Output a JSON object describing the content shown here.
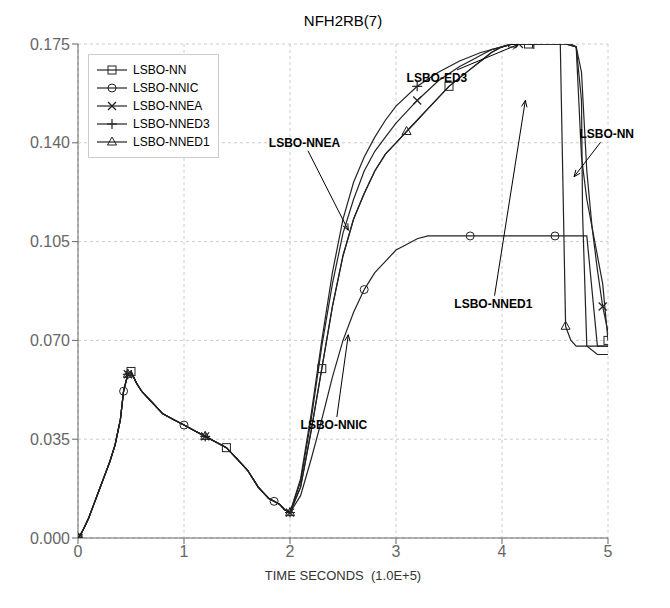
{
  "chart_data": {
    "type": "line",
    "title": "NFH2RB(7)",
    "xlabel": "TIME SECONDS  (1.0E+5)",
    "xlim": [
      0,
      5
    ],
    "ylim": [
      0,
      0.175
    ],
    "xticks": [
      0,
      1,
      2,
      3,
      4,
      5
    ],
    "yticks": [
      {
        "value": 0.0,
        "label": "0.000"
      },
      {
        "value": 0.035,
        "label": "0.035"
      },
      {
        "value": 0.07,
        "label": "0.070"
      },
      {
        "value": 0.105,
        "label": "0.105"
      },
      {
        "value": 0.14,
        "label": "0.140"
      },
      {
        "value": 0.175,
        "label": "0.175"
      }
    ],
    "grid": true,
    "legend": "upper left",
    "series": [
      {
        "name": "LSBO-NN",
        "color": "#222222",
        "marker": "square",
        "x": [
          0.0,
          0.02,
          0.05,
          0.1,
          0.15,
          0.2,
          0.25,
          0.3,
          0.35,
          0.4,
          0.43,
          0.47,
          0.5,
          0.55,
          0.6,
          0.65,
          0.7,
          0.75,
          0.8,
          0.9,
          1.0,
          1.1,
          1.2,
          1.3,
          1.4,
          1.5,
          1.6,
          1.7,
          1.75,
          1.8,
          1.85,
          1.9,
          1.95,
          2.0,
          2.1,
          2.2,
          2.3,
          2.4,
          2.5,
          2.6,
          2.7,
          2.8,
          2.9,
          3.0,
          3.1,
          3.2,
          3.3,
          3.4,
          3.5,
          3.6,
          3.7,
          3.8,
          3.9,
          4.0,
          4.05,
          4.1,
          4.15,
          4.19,
          4.2,
          4.21,
          4.25,
          4.3,
          4.4,
          4.5,
          4.6,
          4.65,
          4.7,
          4.75,
          4.8,
          4.85,
          4.9,
          4.95,
          5.0
        ],
        "values": [
          0.0,
          0.001,
          0.003,
          0.007,
          0.012,
          0.017,
          0.022,
          0.027,
          0.033,
          0.042,
          0.052,
          0.058,
          0.059,
          0.055,
          0.052,
          0.05,
          0.048,
          0.046,
          0.044,
          0.042,
          0.04,
          0.038,
          0.036,
          0.034,
          0.032,
          0.028,
          0.024,
          0.018,
          0.016,
          0.014,
          0.013,
          0.012,
          0.01,
          0.009,
          0.018,
          0.038,
          0.06,
          0.082,
          0.1,
          0.113,
          0.122,
          0.13,
          0.136,
          0.14,
          0.144,
          0.148,
          0.152,
          0.156,
          0.16,
          0.163,
          0.166,
          0.169,
          0.172,
          0.174,
          0.1745,
          0.175,
          0.175,
          0.175,
          0.175,
          0.175,
          0.175,
          0.175,
          0.175,
          0.175,
          0.175,
          0.175,
          0.174,
          0.135,
          0.12,
          0.11,
          0.1,
          0.09,
          0.07
        ]
      },
      {
        "name": "LSBO-NNIC",
        "color": "#222222",
        "marker": "circle",
        "x": [
          0.0,
          0.02,
          0.05,
          0.1,
          0.15,
          0.2,
          0.25,
          0.3,
          0.35,
          0.4,
          0.43,
          0.47,
          0.5,
          0.55,
          0.6,
          0.65,
          0.7,
          0.75,
          0.8,
          0.9,
          1.0,
          1.1,
          1.2,
          1.3,
          1.4,
          1.5,
          1.6,
          1.7,
          1.75,
          1.8,
          1.85,
          1.9,
          1.95,
          2.0,
          2.1,
          2.2,
          2.3,
          2.4,
          2.5,
          2.6,
          2.7,
          2.8,
          2.9,
          3.0,
          3.1,
          3.2,
          3.3,
          3.4,
          3.5,
          3.6,
          3.7,
          3.8,
          3.9,
          4.0,
          4.1,
          4.2,
          4.3,
          4.4,
          4.45,
          4.46,
          4.5,
          4.55,
          4.6,
          4.7,
          4.8,
          4.9,
          5.0
        ],
        "values": [
          0.0,
          0.001,
          0.003,
          0.007,
          0.012,
          0.017,
          0.022,
          0.027,
          0.033,
          0.042,
          0.052,
          0.058,
          0.059,
          0.055,
          0.052,
          0.05,
          0.048,
          0.046,
          0.044,
          0.042,
          0.04,
          0.038,
          0.036,
          0.034,
          0.032,
          0.028,
          0.024,
          0.018,
          0.016,
          0.014,
          0.013,
          0.012,
          0.01,
          0.009,
          0.015,
          0.028,
          0.042,
          0.057,
          0.07,
          0.08,
          0.088,
          0.094,
          0.098,
          0.102,
          0.104,
          0.106,
          0.107,
          0.107,
          0.107,
          0.107,
          0.107,
          0.107,
          0.107,
          0.107,
          0.107,
          0.107,
          0.107,
          0.107,
          0.107,
          0.107,
          0.107,
          0.107,
          0.107,
          0.107,
          0.107,
          0.068,
          0.068
        ]
      },
      {
        "name": "LSBO-NNEA",
        "color": "#222222",
        "marker": "x",
        "x": [
          0.0,
          0.02,
          0.05,
          0.1,
          0.15,
          0.2,
          0.25,
          0.3,
          0.35,
          0.4,
          0.43,
          0.47,
          0.5,
          0.55,
          0.6,
          0.65,
          0.7,
          0.75,
          0.8,
          0.9,
          1.0,
          1.1,
          1.2,
          1.3,
          1.4,
          1.5,
          1.6,
          1.7,
          1.75,
          1.8,
          1.85,
          1.9,
          1.95,
          2.0,
          2.1,
          2.2,
          2.3,
          2.4,
          2.5,
          2.6,
          2.7,
          2.8,
          2.9,
          3.0,
          3.2,
          3.4,
          3.6,
          3.7,
          3.8,
          3.9,
          4.0,
          4.05,
          4.1,
          4.14,
          4.15,
          4.16,
          4.2,
          4.3,
          4.4,
          4.5,
          4.6,
          4.7,
          4.75,
          4.8,
          4.85,
          4.9,
          4.95,
          5.0
        ],
        "values": [
          0.0,
          0.001,
          0.003,
          0.007,
          0.012,
          0.017,
          0.022,
          0.027,
          0.033,
          0.042,
          0.052,
          0.058,
          0.059,
          0.055,
          0.052,
          0.05,
          0.048,
          0.046,
          0.044,
          0.042,
          0.04,
          0.038,
          0.036,
          0.034,
          0.032,
          0.028,
          0.024,
          0.018,
          0.016,
          0.014,
          0.013,
          0.012,
          0.01,
          0.009,
          0.02,
          0.042,
          0.068,
          0.09,
          0.108,
          0.12,
          0.13,
          0.137,
          0.142,
          0.147,
          0.155,
          0.162,
          0.167,
          0.169,
          0.171,
          0.173,
          0.174,
          0.1745,
          0.175,
          0.175,
          0.175,
          0.175,
          0.175,
          0.175,
          0.175,
          0.175,
          0.175,
          0.174,
          0.165,
          0.13,
          0.11,
          0.095,
          0.082,
          0.073
        ]
      },
      {
        "name": "LSBO-NNED3",
        "color": "#222222",
        "marker": "plus",
        "x": [
          0.0,
          0.02,
          0.05,
          0.1,
          0.15,
          0.2,
          0.25,
          0.3,
          0.35,
          0.4,
          0.43,
          0.47,
          0.5,
          0.55,
          0.6,
          0.65,
          0.7,
          0.75,
          0.8,
          0.9,
          1.0,
          1.1,
          1.2,
          1.3,
          1.4,
          1.5,
          1.6,
          1.7,
          1.75,
          1.8,
          1.85,
          1.9,
          1.95,
          2.0,
          2.1,
          2.2,
          2.3,
          2.4,
          2.5,
          2.6,
          2.7,
          2.8,
          2.9,
          3.0,
          3.2,
          3.4,
          3.6,
          3.8,
          4.0,
          4.05,
          4.1,
          4.14,
          4.15,
          4.16,
          4.2,
          4.3,
          4.4,
          4.5,
          4.6,
          4.7,
          4.75,
          4.76,
          4.8,
          4.9,
          5.0
        ],
        "values": [
          0.0,
          0.001,
          0.003,
          0.007,
          0.012,
          0.017,
          0.022,
          0.027,
          0.033,
          0.042,
          0.052,
          0.058,
          0.059,
          0.055,
          0.052,
          0.05,
          0.048,
          0.046,
          0.044,
          0.042,
          0.04,
          0.038,
          0.036,
          0.034,
          0.032,
          0.028,
          0.024,
          0.018,
          0.016,
          0.014,
          0.013,
          0.012,
          0.01,
          0.009,
          0.021,
          0.044,
          0.07,
          0.094,
          0.113,
          0.126,
          0.135,
          0.142,
          0.148,
          0.153,
          0.16,
          0.165,
          0.169,
          0.172,
          0.174,
          0.1745,
          0.175,
          0.175,
          0.175,
          0.175,
          0.175,
          0.175,
          0.175,
          0.175,
          0.175,
          0.174,
          0.155,
          0.115,
          0.068,
          0.065,
          0.065
        ]
      },
      {
        "name": "LSBO-NNED1",
        "color": "#222222",
        "marker": "triangle",
        "x": [
          0.0,
          0.02,
          0.05,
          0.1,
          0.15,
          0.2,
          0.25,
          0.3,
          0.35,
          0.4,
          0.43,
          0.47,
          0.5,
          0.55,
          0.6,
          0.65,
          0.7,
          0.75,
          0.8,
          0.9,
          1.0,
          1.1,
          1.2,
          1.3,
          1.4,
          1.5,
          1.6,
          1.7,
          1.75,
          1.8,
          1.85,
          1.9,
          1.95,
          2.0,
          2.1,
          2.2,
          2.3,
          2.4,
          2.5,
          2.6,
          2.7,
          2.8,
          2.9,
          3.0,
          3.1,
          3.2,
          3.3,
          3.4,
          3.5,
          3.6,
          3.7,
          3.8,
          3.9,
          4.0,
          4.05,
          4.1,
          4.15,
          4.19,
          4.2,
          4.21,
          4.25,
          4.3,
          4.4,
          4.5,
          4.55,
          4.56,
          4.6,
          4.65,
          4.7,
          4.8,
          4.9,
          5.0
        ],
        "values": [
          0.0,
          0.001,
          0.003,
          0.007,
          0.012,
          0.017,
          0.022,
          0.027,
          0.033,
          0.042,
          0.052,
          0.058,
          0.059,
          0.055,
          0.052,
          0.05,
          0.048,
          0.046,
          0.044,
          0.042,
          0.04,
          0.038,
          0.036,
          0.034,
          0.032,
          0.028,
          0.024,
          0.018,
          0.016,
          0.014,
          0.013,
          0.012,
          0.01,
          0.009,
          0.018,
          0.038,
          0.06,
          0.082,
          0.1,
          0.113,
          0.122,
          0.13,
          0.136,
          0.14,
          0.144,
          0.148,
          0.152,
          0.156,
          0.16,
          0.163,
          0.166,
          0.169,
          0.172,
          0.174,
          0.1745,
          0.175,
          0.175,
          0.175,
          0.175,
          0.175,
          0.175,
          0.175,
          0.175,
          0.175,
          0.175,
          0.155,
          0.075,
          0.07,
          0.068,
          0.068,
          0.068,
          0.068
        ]
      }
    ],
    "annotations": [
      {
        "text": "LSBO-ED3",
        "xy": [
          4.15,
          0.1748
        ],
        "xytext": [
          3.1,
          0.163
        ]
      },
      {
        "text": "LSBO-NNEA",
        "xy": [
          2.55,
          0.109
        ],
        "xytext": [
          1.8,
          0.14
        ]
      },
      {
        "text": "LSBO-NNIC",
        "xy": [
          2.55,
          0.072
        ],
        "xytext": [
          2.1,
          0.04
        ]
      },
      {
        "text": "LSBO-NNED1",
        "xy": [
          4.22,
          0.155
        ],
        "xytext": [
          3.55,
          0.083
        ]
      },
      {
        "text": "LSBO-NN",
        "xy": [
          4.68,
          0.128
        ],
        "xytext": [
          4.73,
          0.143
        ]
      }
    ]
  }
}
